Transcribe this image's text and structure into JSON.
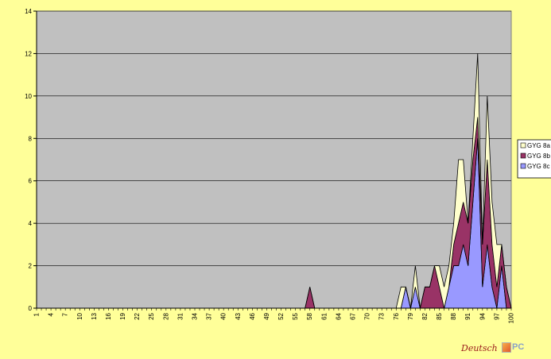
{
  "chart_data": {
    "type": "area",
    "stacked": true,
    "x_start": 1,
    "x_end": 100,
    "x_tick_labels": [
      "1",
      "4",
      "7",
      "10",
      "13",
      "16",
      "19",
      "22",
      "25",
      "28",
      "31",
      "34",
      "37",
      "40",
      "43",
      "46",
      "49",
      "52",
      "55",
      "58",
      "61",
      "64",
      "67",
      "70",
      "73",
      "76",
      "79",
      "82",
      "85",
      "88",
      "91",
      "94",
      "97",
      "100"
    ],
    "y_ticks": [
      0,
      2,
      4,
      6,
      8,
      10,
      12,
      14
    ],
    "ylim": [
      0,
      14
    ],
    "grid": "horizontal",
    "legend_position": "right",
    "colors": {
      "plot_bg": "#c0c0c0",
      "page_bg": "#ffff99"
    },
    "series": [
      {
        "name": "GYG 8c",
        "color": "#9999ff",
        "values": {
          "78": 1,
          "80": 1,
          "87": 1,
          "88": 2,
          "89": 2,
          "90": 3,
          "91": 2,
          "92": 5,
          "93": 8,
          "94": 1,
          "95": 3,
          "96": 1,
          "97": 0,
          "98": 2
        }
      },
      {
        "name": "GYG 8b",
        "color": "#993366",
        "values": {
          "58": 1,
          "82": 1,
          "83": 1,
          "84": 2,
          "85": 1,
          "86": 0,
          "88": 1,
          "89": 2,
          "90": 2,
          "91": 2,
          "92": 2,
          "93": 1,
          "94": 2,
          "95": 4,
          "96": 2,
          "97": 1,
          "98": 1,
          "99": 1
        }
      },
      {
        "name": "GYG 8a",
        "color": "#ffffcc",
        "values": {
          "77": 1,
          "78": 0,
          "80": 1,
          "84": 0,
          "85": 1,
          "86": 1,
          "87": 1,
          "88": 1,
          "89": 3,
          "90": 2,
          "91": 0,
          "92": 1,
          "93": 3,
          "94": 0,
          "95": 3,
          "96": 2,
          "97": 2
        }
      }
    ]
  },
  "logo": {
    "script_text": "Deutsch",
    "box_text": "PC"
  }
}
